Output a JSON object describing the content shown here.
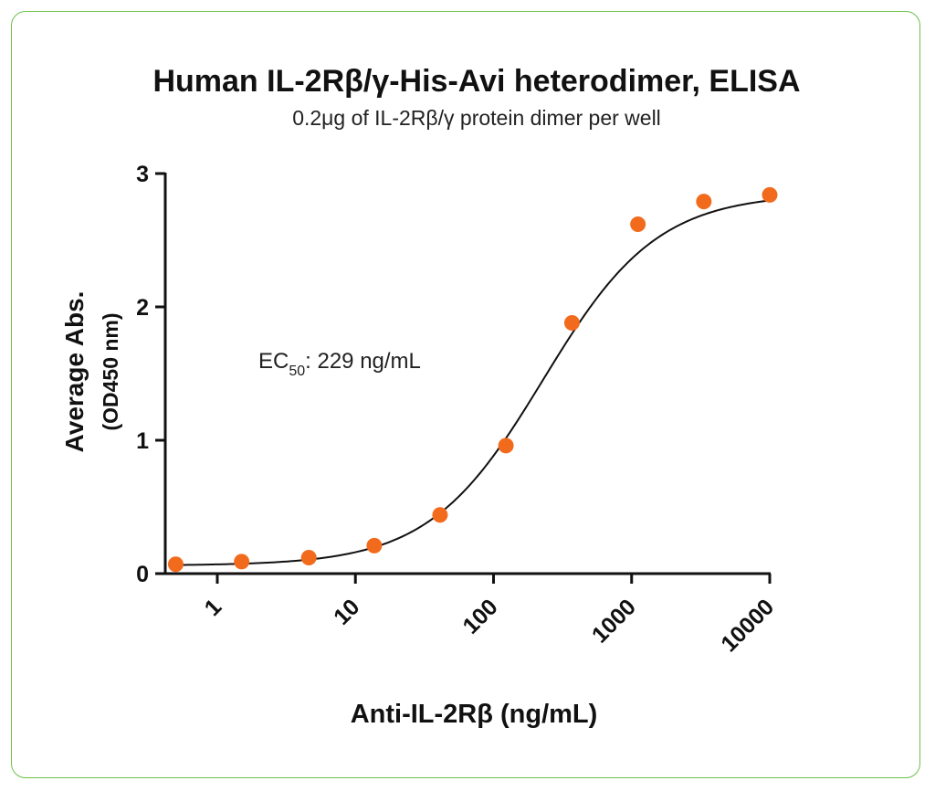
{
  "chart_data": {
    "type": "scatter",
    "title": "Human IL-2Rβ/γ-His-Avi heterodimer, ELISA",
    "subtitle": "0.2μg of IL-2Rβ/γ protein dimer per well",
    "xlabel": "Anti-IL-2Rβ (ng/mL)",
    "ylabel": "Average Abs.",
    "ylabel_sub": "(OD450 nm)",
    "x_scale": "log",
    "xlim": [
      0.42,
      10000
    ],
    "ylim": [
      0,
      3
    ],
    "x_ticks": [
      1,
      10,
      100,
      1000,
      10000
    ],
    "x_tick_labels": [
      "1",
      "10",
      "100",
      "1000",
      "10000"
    ],
    "y_ticks": [
      0,
      1,
      2,
      3
    ],
    "y_tick_labels": [
      "0",
      "1",
      "2",
      "3"
    ],
    "grid": false,
    "series": [
      {
        "x": [
          0.5,
          1.5,
          4.6,
          13.7,
          41,
          123,
          370,
          1111,
          3333,
          10000
        ],
        "y": [
          0.07,
          0.09,
          0.12,
          0.21,
          0.44,
          0.96,
          1.88,
          2.62,
          2.79,
          2.84
        ],
        "color": "#f26b1d"
      }
    ],
    "fit_curve": {
      "model": "4PL",
      "bottom": 0.06,
      "top": 2.85,
      "ec50": 229,
      "hill": 1.05,
      "color": "#111111"
    },
    "annotation": {
      "prefix": "EC",
      "subscript": "50",
      "suffix": ": 229 ng/mL"
    }
  },
  "frame_color": "#6cc04a"
}
